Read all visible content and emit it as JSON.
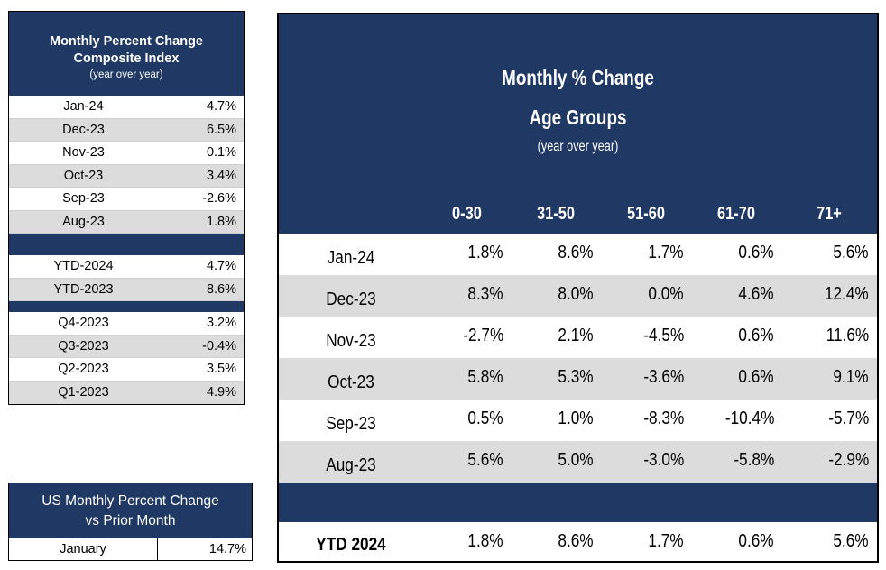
{
  "composite": {
    "title_line1": "Monthly Percent Change",
    "title_line2": "Composite Index",
    "subtitle": "(year over year)",
    "monthly": [
      {
        "label": "Jan-24",
        "value": "4.7%"
      },
      {
        "label": "Dec-23",
        "value": "6.5%"
      },
      {
        "label": "Nov-23",
        "value": "0.1%"
      },
      {
        "label": "Oct-23",
        "value": "3.4%"
      },
      {
        "label": "Sep-23",
        "value": "-2.6%"
      },
      {
        "label": "Aug-23",
        "value": "1.8%"
      }
    ],
    "ytd": [
      {
        "label": "YTD-2024",
        "value": "4.7%"
      },
      {
        "label": "YTD-2023",
        "value": "8.6%"
      }
    ],
    "quarters": [
      {
        "label": "Q4-2023",
        "value": "3.2%"
      },
      {
        "label": "Q3-2023",
        "value": "-0.4%"
      },
      {
        "label": "Q2-2023",
        "value": "3.5%"
      },
      {
        "label": "Q1-2023",
        "value": "4.9%"
      }
    ]
  },
  "us": {
    "title_line1": "US Monthly Percent Change",
    "title_line2": "vs Prior Month",
    "label": "January",
    "value": "14.7%"
  },
  "age": {
    "title_line1": "Monthly % Change",
    "title_line2": "Age Groups",
    "subtitle": "(year over year)",
    "columns": [
      "0-30",
      "31-50",
      "51-60",
      "61-70",
      "71+"
    ],
    "rows": [
      {
        "label": "Jan-24",
        "values": [
          "1.8%",
          "8.6%",
          "1.7%",
          "0.6%",
          "5.6%"
        ]
      },
      {
        "label": "Dec-23",
        "values": [
          "8.3%",
          "8.0%",
          "0.0%",
          "4.6%",
          "12.4%"
        ]
      },
      {
        "label": "Nov-23",
        "values": [
          "-2.7%",
          "2.1%",
          "-4.5%",
          "0.6%",
          "11.6%"
        ]
      },
      {
        "label": "Oct-23",
        "values": [
          "5.8%",
          "5.3%",
          "-3.6%",
          "0.6%",
          "9.1%"
        ]
      },
      {
        "label": "Sep-23",
        "values": [
          "0.5%",
          "1.0%",
          "-8.3%",
          "-10.4%",
          "-5.7%"
        ]
      },
      {
        "label": "Aug-23",
        "values": [
          "5.6%",
          "5.0%",
          "-3.0%",
          "-5.8%",
          "-2.9%"
        ]
      }
    ],
    "ytd": {
      "label": "YTD 2024",
      "values": [
        "1.8%",
        "8.6%",
        "1.7%",
        "0.6%",
        "5.6%"
      ]
    }
  },
  "colors": {
    "header_navy": "#1f3864",
    "stripe_gray": "#dcdcdc"
  }
}
